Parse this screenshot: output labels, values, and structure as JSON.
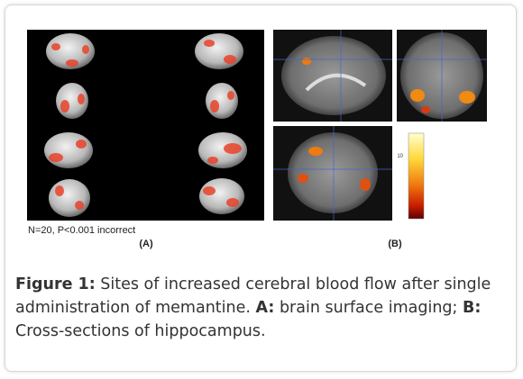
{
  "figure": {
    "panel_a": {
      "note": "N=20, P<0.001 incorrect",
      "label": "(A)"
    },
    "panel_b": {
      "label": "(B)",
      "colorbar_tick": "10"
    },
    "caption": {
      "label": "Figure 1:",
      "text": " Sites of increased cerebral blood flow after single administration of memantine. ",
      "a_label": "A:",
      "a_text": " brain surface imaging; ",
      "b_label": "B:",
      "b_text": " Cross-sections of hippocampus."
    }
  }
}
